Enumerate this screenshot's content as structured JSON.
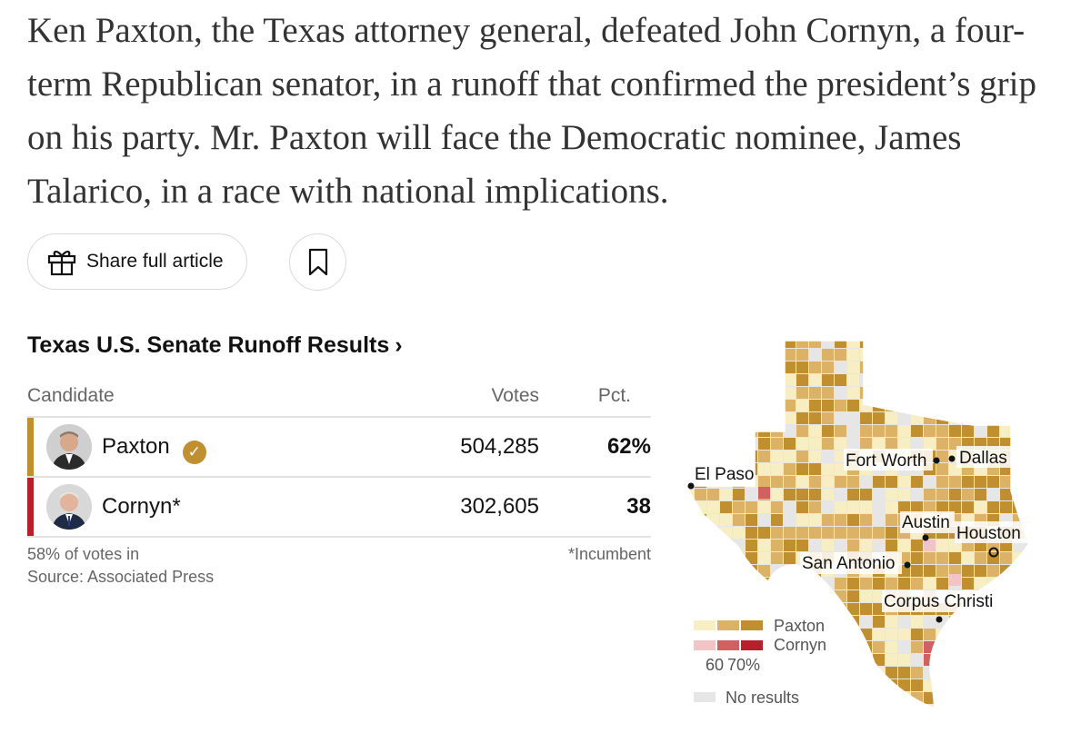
{
  "article": {
    "summary": "Ken Paxton, the Texas attorney general, defeated John Cornyn, a four-term Republican senator, in a runoff that confirmed the president’s grip on his party. Mr. Paxton will face the Democratic nominee, James Talarico, in a race with national implications."
  },
  "actions": {
    "share_label": "Share full article",
    "share_icon": "gift-icon",
    "save_icon": "bookmark-icon"
  },
  "results": {
    "title": "Texas U.S. Senate Runoff Results",
    "title_chevron": "›",
    "columns": {
      "candidate": "Candidate",
      "votes": "Votes",
      "pct": "Pct."
    },
    "rows": [
      {
        "name": "Paxton",
        "votes": "504,285",
        "pct": "62%",
        "winner": true,
        "color": "#bf8f30"
      },
      {
        "name": "Cornyn*",
        "votes": "302,605",
        "pct": "38",
        "winner": false,
        "color": "#b5202a"
      }
    ],
    "votes_in": "58% of votes in",
    "source": "Source: Associated Press",
    "incumbent_note": "*Incumbent"
  },
  "map": {
    "cities": {
      "el_paso": "El Paso",
      "fort_worth": "Fort Worth",
      "dallas": "Dallas",
      "austin": "Austin",
      "houston": "Houston",
      "san_antonio": "San Antonio",
      "corpus_christi": "Corpus Christi"
    },
    "legend": {
      "paxton": "Paxton",
      "cornyn": "Cornyn",
      "scale_60": "60",
      "scale_70": "70%",
      "no_results": "No results"
    },
    "colors": {
      "paxton_light": "#f7eec4",
      "paxton_mid": "#dcb366",
      "paxton_dark": "#bf8f30",
      "cornyn_light": "#f3c4c6",
      "cornyn_mid": "#d26060",
      "cornyn_dark": "#b5202a",
      "no_results": "#e6e6e6"
    }
  }
}
